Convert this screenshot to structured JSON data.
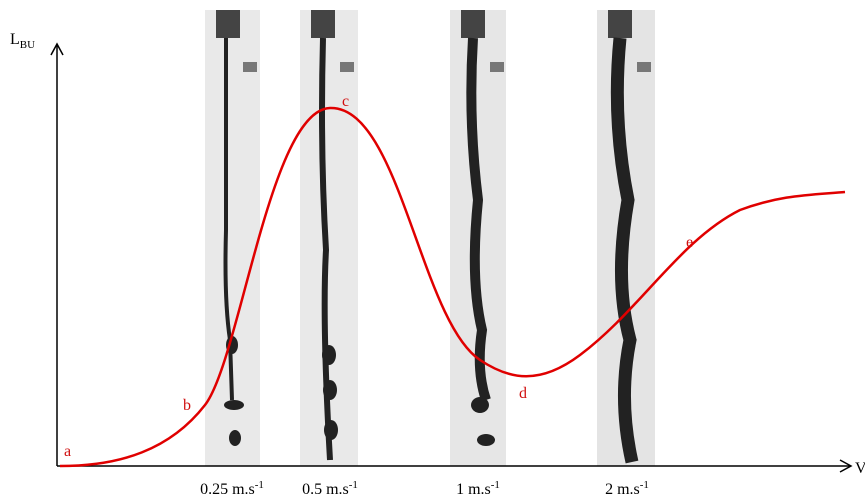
{
  "axes": {
    "y_label": {
      "main": "L",
      "sub": "BU"
    },
    "x_label": "V"
  },
  "points": [
    "a",
    "b",
    "c",
    "d",
    "e"
  ],
  "velocities": [
    {
      "text": "0.25 m.s",
      "sup": "-1"
    },
    {
      "text": "0.5 m.s",
      "sup": "-1"
    },
    {
      "text": "1 m.s",
      "sup": "-1"
    },
    {
      "text": "2 m.s",
      "sup": "-1"
    }
  ]
}
